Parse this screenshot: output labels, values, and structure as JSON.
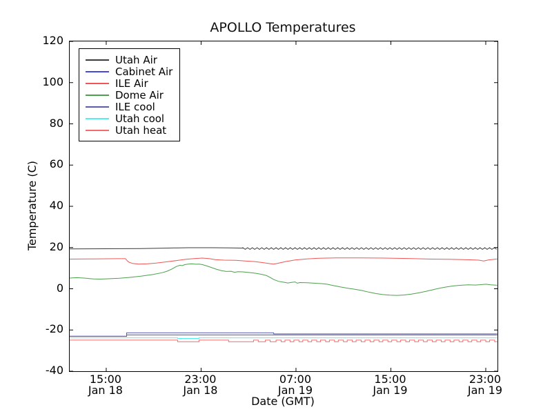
{
  "chart_data": {
    "type": "line",
    "title": "APOLLO Temperatures",
    "xlabel": "Date (GMT)",
    "ylabel": "Temperature (C)",
    "x_range": [
      0,
      36.07
    ],
    "y_range": [
      -40,
      120
    ],
    "y_ticks": [
      120,
      100,
      80,
      60,
      40,
      20,
      0,
      -20,
      -40
    ],
    "x_ticks": [
      {
        "t": 3.08,
        "time": "15:00",
        "date": "Jan 18"
      },
      {
        "t": 11.08,
        "time": "23:00",
        "date": "Jan 18"
      },
      {
        "t": 19.08,
        "time": "07:00",
        "date": "Jan 19"
      },
      {
        "t": 27.08,
        "time": "15:00",
        "date": "Jan 19"
      },
      {
        "t": 35.08,
        "time": "23:00",
        "date": "Jan 19"
      }
    ],
    "grid": false,
    "legend_position": "upper-left",
    "series": [
      {
        "name": "Utah Air",
        "color": "#3a3a3a",
        "points": [
          [
            0,
            19.3
          ],
          [
            3,
            19.4
          ],
          [
            6,
            19.5
          ],
          [
            8,
            19.7
          ],
          [
            10,
            19.9
          ],
          [
            12,
            19.9
          ],
          [
            13.5,
            19.8
          ],
          [
            14.6,
            19.7
          ]
        ],
        "wave": {
          "type": "triangle",
          "from": 14.6,
          "to": 36.05,
          "mid": 19.5,
          "amp": 0.4,
          "period": 0.4
        }
      },
      {
        "name": "Cabinet Air",
        "color": "#4646e0",
        "points": [
          [
            0,
            -23.0
          ],
          [
            4.8,
            -23.0
          ],
          [
            4.8,
            -22.4
          ],
          [
            36.05,
            -22.4
          ]
        ]
      },
      {
        "name": "ILE Air",
        "color": "#f05454",
        "points": [
          [
            0,
            14.4
          ],
          [
            2,
            14.5
          ],
          [
            4,
            14.6
          ],
          [
            4.7,
            14.6
          ],
          [
            4.85,
            13.6
          ],
          [
            5.0,
            12.9
          ],
          [
            5.3,
            12.3
          ],
          [
            5.8,
            12.0
          ],
          [
            6.5,
            12.1
          ],
          [
            7.3,
            12.5
          ],
          [
            8.2,
            13.1
          ],
          [
            9.0,
            13.7
          ],
          [
            9.8,
            14.3
          ],
          [
            10.6,
            14.7
          ],
          [
            11.2,
            14.9
          ],
          [
            11.8,
            14.6
          ],
          [
            12.3,
            14.1
          ],
          [
            13.0,
            13.9
          ],
          [
            14.0,
            13.8
          ],
          [
            14.8,
            13.5
          ],
          [
            15.6,
            13.2
          ],
          [
            16.3,
            12.7
          ],
          [
            16.9,
            12.2
          ],
          [
            17.2,
            12.0
          ],
          [
            17.5,
            12.3
          ],
          [
            18.2,
            13.2
          ],
          [
            19.0,
            14.0
          ],
          [
            20.0,
            14.5
          ],
          [
            21.0,
            14.8
          ],
          [
            22.5,
            15.0
          ],
          [
            24.5,
            15.0
          ],
          [
            26.5,
            14.9
          ],
          [
            28.5,
            14.7
          ],
          [
            30.5,
            14.4
          ],
          [
            32.0,
            14.3
          ],
          [
            33.5,
            14.1
          ],
          [
            34.5,
            13.9
          ],
          [
            34.9,
            13.5
          ],
          [
            35.3,
            14.0
          ],
          [
            36.05,
            14.5
          ]
        ]
      },
      {
        "name": "Dome Air",
        "color": "#4ba04b",
        "points": [
          [
            0,
            5.2
          ],
          [
            0.6,
            5.4
          ],
          [
            1.2,
            5.2
          ],
          [
            2.0,
            4.8
          ],
          [
            2.6,
            4.7
          ],
          [
            3.4,
            4.9
          ],
          [
            4.2,
            5.1
          ],
          [
            5.0,
            5.5
          ],
          [
            6.0,
            6.1
          ],
          [
            7.0,
            6.9
          ],
          [
            7.8,
            7.8
          ],
          [
            8.2,
            8.5
          ],
          [
            8.6,
            9.5
          ],
          [
            9.0,
            10.8
          ],
          [
            9.3,
            11.4
          ],
          [
            9.5,
            11.2
          ],
          [
            9.7,
            11.7
          ],
          [
            10.0,
            12.0
          ],
          [
            10.3,
            12.1
          ],
          [
            10.6,
            11.9
          ],
          [
            10.9,
            12.0
          ],
          [
            11.2,
            11.7
          ],
          [
            11.6,
            11.0
          ],
          [
            12.0,
            10.2
          ],
          [
            12.4,
            9.4
          ],
          [
            12.8,
            8.8
          ],
          [
            13.2,
            8.4
          ],
          [
            13.6,
            8.5
          ],
          [
            13.9,
            8.0
          ],
          [
            14.2,
            8.3
          ],
          [
            14.6,
            8.2
          ],
          [
            15.1,
            7.9
          ],
          [
            15.7,
            7.5
          ],
          [
            16.2,
            7.0
          ],
          [
            16.6,
            6.4
          ],
          [
            16.9,
            5.5
          ],
          [
            17.2,
            4.5
          ],
          [
            17.6,
            3.6
          ],
          [
            18.0,
            3.2
          ],
          [
            18.4,
            2.8
          ],
          [
            18.7,
            3.1
          ],
          [
            19.0,
            3.3
          ],
          [
            19.2,
            2.7
          ],
          [
            19.4,
            3.0
          ],
          [
            20.0,
            2.9
          ],
          [
            20.6,
            2.7
          ],
          [
            21.2,
            2.5
          ],
          [
            21.7,
            2.2
          ],
          [
            22.2,
            1.6
          ],
          [
            22.8,
            0.9
          ],
          [
            23.4,
            0.3
          ],
          [
            24.0,
            -0.2
          ],
          [
            24.6,
            -0.8
          ],
          [
            25.2,
            -1.6
          ],
          [
            25.8,
            -2.3
          ],
          [
            26.4,
            -2.8
          ],
          [
            27.0,
            -3.1
          ],
          [
            27.6,
            -3.2
          ],
          [
            28.2,
            -3.0
          ],
          [
            28.8,
            -2.6
          ],
          [
            29.4,
            -2.0
          ],
          [
            30.0,
            -1.3
          ],
          [
            30.6,
            -0.5
          ],
          [
            31.2,
            0.3
          ],
          [
            31.8,
            0.9
          ],
          [
            32.4,
            1.4
          ],
          [
            33.0,
            1.7
          ],
          [
            33.6,
            1.9
          ],
          [
            34.2,
            1.8
          ],
          [
            34.7,
            2.0
          ],
          [
            35.1,
            2.2
          ],
          [
            35.5,
            1.9
          ],
          [
            36.05,
            1.7
          ]
        ]
      },
      {
        "name": "ILE cool",
        "color": "#5b5baa",
        "points": [
          [
            0,
            -23.1
          ],
          [
            4.8,
            -23.1
          ],
          [
            4.8,
            -21.4
          ],
          [
            17.2,
            -21.4
          ],
          [
            17.2,
            -21.9
          ],
          [
            36.05,
            -21.9
          ]
        ]
      },
      {
        "name": "Utah cool",
        "color": "#55eeee",
        "points": [
          [
            0,
            -23.8
          ],
          [
            9.1,
            -23.8
          ],
          [
            9.1,
            -24.1
          ],
          [
            10.9,
            -24.1
          ],
          [
            10.9,
            -23.8
          ],
          [
            36.05,
            -23.8
          ]
        ]
      },
      {
        "name": "Utah heat",
        "color": "#f56a6a",
        "points": [
          [
            0,
            -24.9
          ],
          [
            9.1,
            -24.9
          ],
          [
            9.1,
            -25.7
          ],
          [
            10.9,
            -25.7
          ],
          [
            10.9,
            -24.9
          ],
          [
            13.4,
            -24.9
          ],
          [
            13.4,
            -25.7
          ],
          [
            15.5,
            -25.7
          ],
          [
            15.5,
            -24.9
          ],
          [
            15.9,
            -24.9
          ],
          [
            15.9,
            -25.7
          ],
          [
            16.5,
            -25.7
          ],
          [
            16.5,
            -24.9
          ],
          [
            16.9,
            -24.9
          ],
          [
            16.9,
            -25.7
          ],
          [
            17.4,
            -25.7
          ]
        ],
        "wave": {
          "type": "square",
          "from": 17.4,
          "to": 36.05,
          "period": 0.75,
          "dip": 0.32,
          "high": -24.9,
          "low": -25.7
        }
      }
    ]
  }
}
